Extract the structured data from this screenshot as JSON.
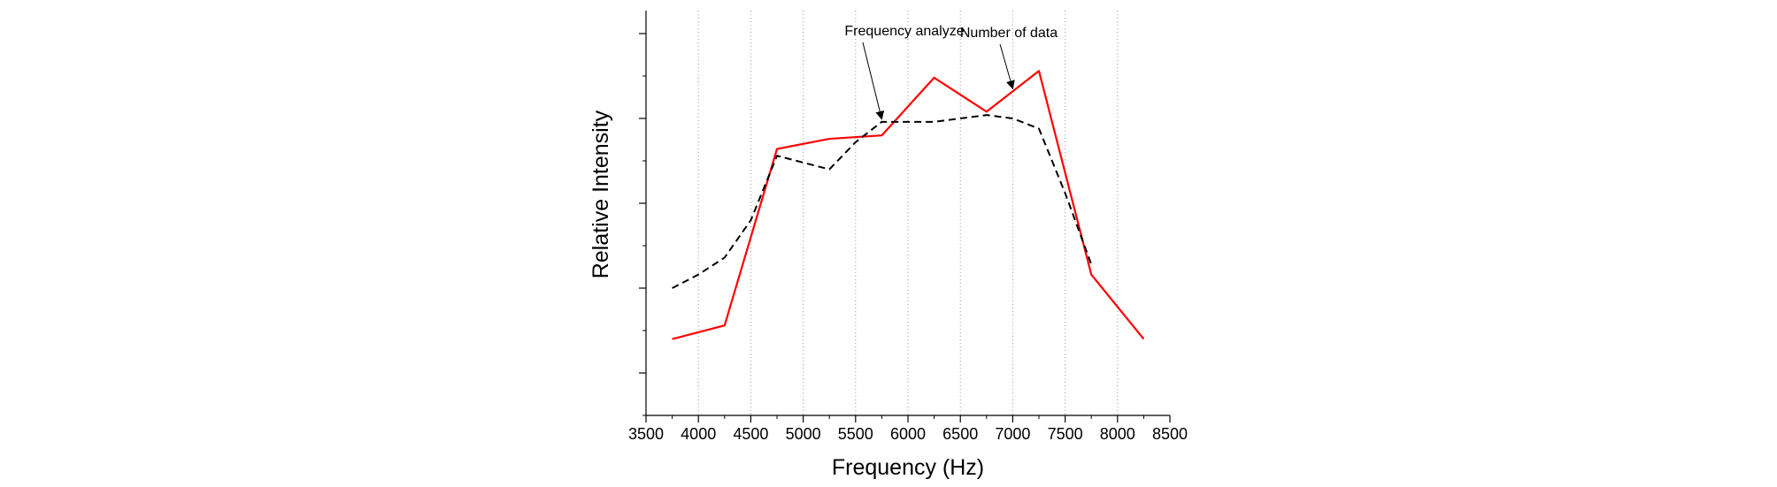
{
  "chart_data": {
    "type": "line",
    "title": "",
    "xlabel": "Frequency (Hz)",
    "ylabel": "Relative Intensity",
    "xlim": [
      3500,
      8500
    ],
    "ylim": [
      0,
      1
    ],
    "x_ticks": [
      3500,
      4000,
      4500,
      5000,
      5500,
      6000,
      6500,
      7000,
      7500,
      8000,
      8500
    ],
    "x_tick_labels": [
      "3500",
      "4000",
      "4500",
      "5000",
      "5500",
      "6000",
      "6500",
      "7000",
      "7500",
      "8000",
      "8500"
    ],
    "y_tick_labels": [],
    "grid": "vertical dotted",
    "series": [
      {
        "name": "Number of data",
        "style": "solid",
        "color": "#ff0000",
        "x": [
          3750,
          4250,
          4750,
          5250,
          5750,
          6250,
          6750,
          7250,
          7750,
          8250
        ],
        "y": [
          0.1,
          0.14,
          0.66,
          0.69,
          0.7,
          0.87,
          0.77,
          0.89,
          0.29,
          0.1
        ]
      },
      {
        "name": "Frequency analyze",
        "style": "dashed",
        "color": "#000000",
        "x": [
          3750,
          4000,
          4250,
          4500,
          4750,
          5000,
          5250,
          5500,
          5750,
          6000,
          6250,
          6500,
          6750,
          7000,
          7250,
          7500,
          7750
        ],
        "y": [
          0.25,
          0.29,
          0.34,
          0.45,
          0.64,
          0.62,
          0.6,
          0.68,
          0.74,
          0.74,
          0.74,
          0.75,
          0.76,
          0.75,
          0.72,
          0.53,
          0.32
        ]
      }
    ],
    "annotations": [
      {
        "text": "Frequency analyze",
        "series": "Frequency analyze",
        "arrow_to": {
          "x": 5750,
          "y": 0.74
        }
      },
      {
        "text": "Number of data",
        "series": "Number of data",
        "arrow_to": {
          "x": 7000,
          "y": 0.83
        }
      }
    ]
  }
}
